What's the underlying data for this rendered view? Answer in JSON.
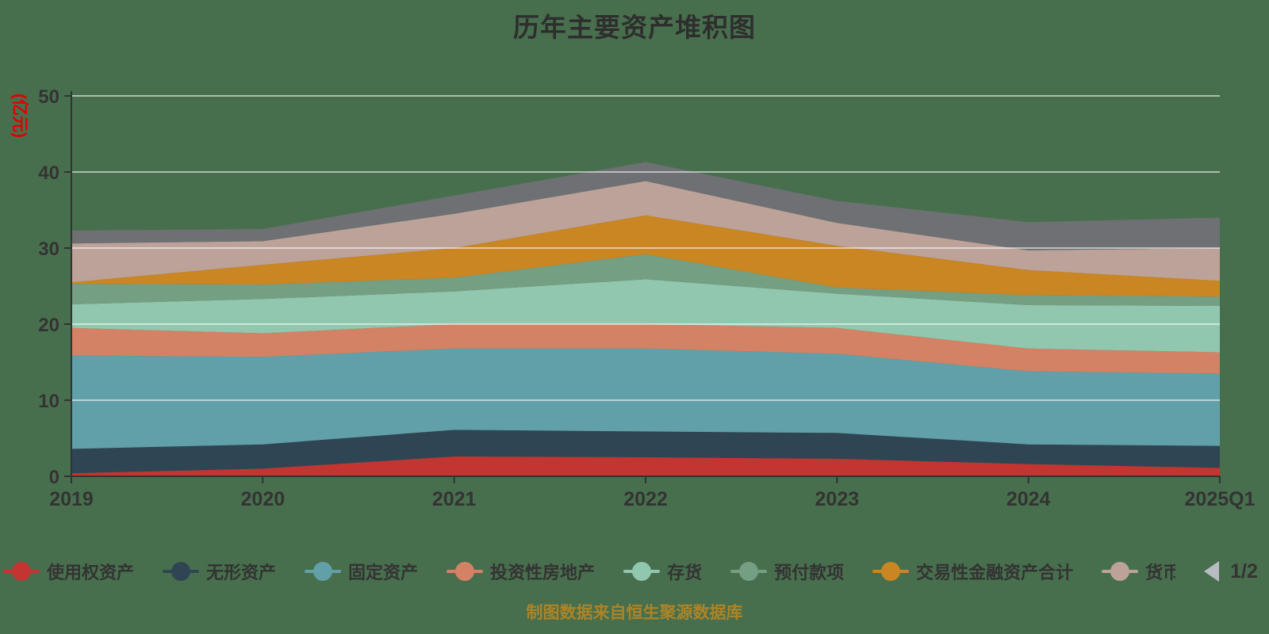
{
  "title": "历年主要资产堆积图",
  "y_axis_name": "(亿元)",
  "footer": "制图数据来自恒生聚源数据库",
  "pagination": {
    "current": "1/2"
  },
  "ui_colors": {
    "background": "#486F4D",
    "text": "#333333",
    "title": "#2e2e2e",
    "footer_gold": "#AD8426",
    "y_axis_name_red": "#E00000",
    "pager_prev_arrow": "#b7bcc2",
    "pager_next_arrow": "#2f4554"
  },
  "chart_data": {
    "type": "area",
    "stacked": true,
    "title": "历年主要资产堆积图",
    "y_unit": "(亿元)",
    "x": [
      "2019",
      "2020",
      "2021",
      "2022",
      "2023",
      "2024",
      "2025Q1"
    ],
    "ylim": [
      0,
      50
    ],
    "y_ticks": [
      0,
      10,
      20,
      30,
      40,
      50
    ],
    "grid": true,
    "legend_position": "bottom",
    "series": [
      {
        "name": "使用权资产",
        "color": "#c23531",
        "values": [
          0.4,
          1.0,
          2.6,
          2.5,
          2.3,
          1.6,
          1.1
        ]
      },
      {
        "name": "无形资产",
        "color": "#2f4554",
        "values": [
          3.2,
          3.2,
          3.5,
          3.4,
          3.4,
          2.6,
          2.9
        ]
      },
      {
        "name": "固定资产",
        "color": "#61a0a8",
        "values": [
          12.3,
          11.5,
          10.7,
          10.9,
          10.4,
          9.6,
          9.5
        ]
      },
      {
        "name": "投资性房地产",
        "color": "#d48265",
        "values": [
          3.6,
          3.1,
          3.2,
          3.2,
          3.4,
          3.0,
          2.8
        ]
      },
      {
        "name": "存货",
        "color": "#91c7ae",
        "values": [
          3.1,
          4.5,
          4.3,
          5.9,
          4.5,
          5.7,
          6.1
        ]
      },
      {
        "name": "预付款项",
        "color": "#749f83",
        "values": [
          2.7,
          1.9,
          1.8,
          3.3,
          0.8,
          1.3,
          1.2
        ]
      },
      {
        "name": "交易性金融资产合计",
        "color": "#ca8622",
        "values": [
          0.2,
          2.6,
          3.9,
          5.1,
          5.5,
          3.3,
          2.1
        ]
      },
      {
        "name": "货币",
        "color": "#bda29a",
        "values": [
          5.1,
          3.1,
          4.5,
          4.5,
          3.0,
          2.6,
          4.3
        ],
        "label_truncated": true
      },
      {
        "name": "",
        "color": "#6e7074",
        "values": [
          1.7,
          1.6,
          2.4,
          2.5,
          2.9,
          3.7,
          4.0
        ],
        "legend_page": 2
      }
    ]
  }
}
